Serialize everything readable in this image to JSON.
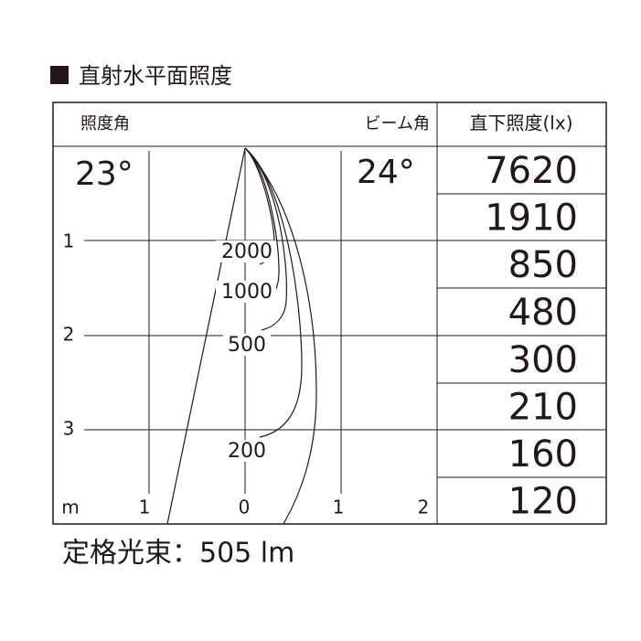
{
  "title": "直射水平面照度",
  "left_header": "照度角",
  "right_header": "ビーム角",
  "table_header": "直下照度(lx)",
  "illuminance_angle": "23°",
  "beam_angle": "24°",
  "table": {
    "rows": [
      "7620",
      "1910",
      "850",
      "480",
      "300",
      "210",
      "160",
      "120"
    ]
  },
  "isolux_labels": [
    "2000",
    "1000",
    "500",
    "200"
  ],
  "distance_labels": [
    "1",
    "2",
    "3"
  ],
  "width_labels": [
    "m",
    "1",
    "0",
    "1",
    "2"
  ],
  "footer": "定格光束：505 lm"
}
